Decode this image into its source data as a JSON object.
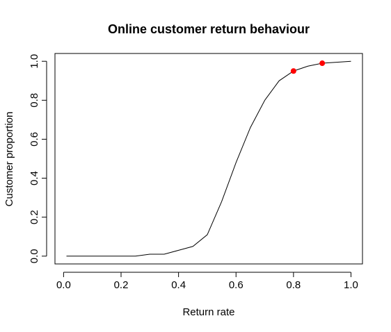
{
  "chart_data": {
    "type": "line",
    "title": "Online customer return behaviour",
    "x_label": "Return rate",
    "y_label": "Customer proportion",
    "x": [
      0.01,
      0.05,
      0.1,
      0.15,
      0.2,
      0.25,
      0.3,
      0.35,
      0.4,
      0.45,
      0.5,
      0.55,
      0.6,
      0.65,
      0.7,
      0.75,
      0.8,
      0.85,
      0.9,
      0.95,
      1.0
    ],
    "series": [
      {
        "color": "#000000",
        "values": [
          0.0,
          0.0,
          0.0,
          0.0,
          0.0,
          0.0,
          0.01,
          0.01,
          0.03,
          0.05,
          0.11,
          0.28,
          0.48,
          0.66,
          0.8,
          0.9,
          0.95,
          0.975,
          0.99,
          0.995,
          1.0
        ]
      }
    ],
    "points": {
      "x": [
        0.8,
        0.9
      ],
      "values": [
        0.95,
        0.99
      ],
      "color": "#ff0000"
    },
    "xlim": [
      -0.03,
      1.04
    ],
    "ylim": [
      -0.04,
      1.04
    ],
    "xticks": [
      {
        "value": 0,
        "label": "0.0"
      },
      0.2,
      0.4,
      0.6,
      0.8,
      {
        "value": 1,
        "label": "1.0"
      }
    ],
    "yticks": [
      {
        "value": 0,
        "label": "0.0"
      },
      0.2,
      0.4,
      0.6,
      0.8,
      {
        "value": 1,
        "label": "1.0"
      }
    ]
  }
}
